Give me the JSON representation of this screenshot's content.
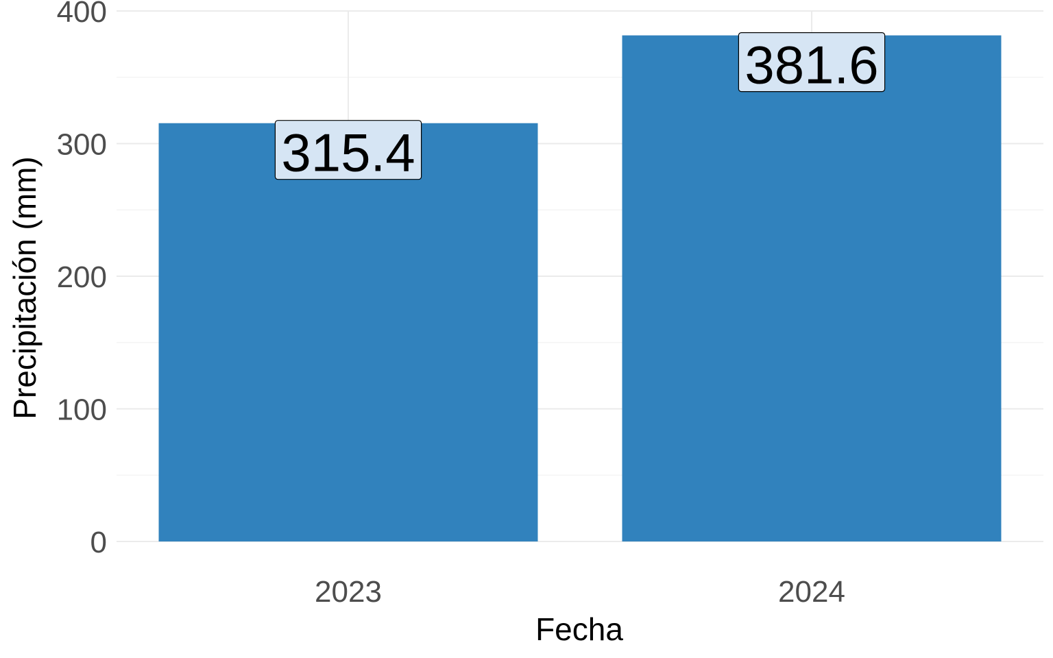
{
  "chart_data": {
    "type": "bar",
    "title": "",
    "xlabel": "Fecha",
    "ylabel": "Precipitación (mm)",
    "categories": [
      "2023",
      "2024"
    ],
    "values": [
      315.4,
      381.6
    ],
    "data_labels": [
      "315.4",
      "381.6"
    ],
    "ylim": [
      0,
      400
    ],
    "yticks": [
      0,
      100,
      200,
      300,
      400
    ],
    "ytick_labels": [
      "0",
      "100",
      "200",
      "300",
      "400"
    ],
    "grid": true,
    "legend": "none",
    "colors": {
      "bar": "#3182bd",
      "label_fill": "#d6e5f4",
      "label_border": "#000000",
      "grid": "#ebebeb"
    }
  }
}
